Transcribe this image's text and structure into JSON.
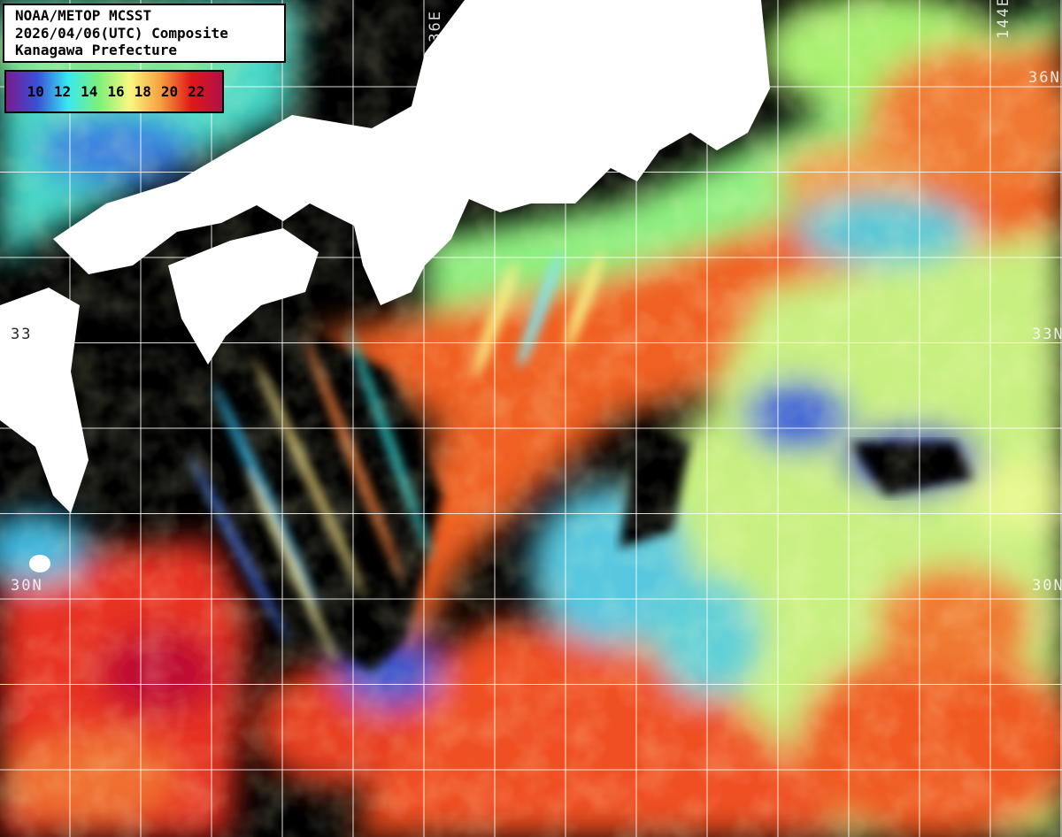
{
  "title": {
    "lines": [
      "NOAA/METOP MCSST",
      "2026/04/06(UTC) Composite",
      "Kanagawa Prefecture"
    ]
  },
  "legend": {
    "unit_hidden": "",
    "labels": [
      "10",
      "12",
      "14",
      "16",
      "18",
      "20",
      "22"
    ],
    "colors": [
      "#7a1a8c",
      "#3a4fd8",
      "#38e8f0",
      "#7ef07a",
      "#f8f880",
      "#f8a040",
      "#e01818",
      "#b0104a"
    ]
  },
  "grid": {
    "lon_labels": [
      "136E",
      "144E"
    ],
    "lat_labels_right": [
      "36N",
      "33N",
      "30N"
    ],
    "lat_labels_left": [
      "33",
      "30N"
    ]
  },
  "colors": {
    "land": "#ffffff",
    "no_data": "#000000",
    "grid": "#ffffff"
  }
}
